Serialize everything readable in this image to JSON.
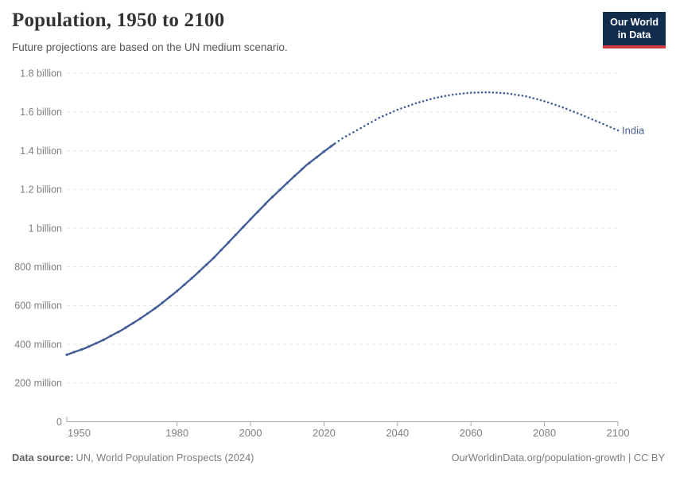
{
  "header": {
    "title": "Population, 1950 to 2100",
    "subtitle": "Future projections are based on the UN medium scenario.",
    "logo": {
      "line1": "Our World",
      "line2": "in Data",
      "bg_color": "#102d4e",
      "accent_color": "#cf3b41"
    }
  },
  "footer": {
    "source_label": "Data source:",
    "source_text": "UN, World Population Prospects (2024)",
    "credit": "OurWorldinData.org/population-growth | CC BY"
  },
  "chart_data": {
    "type": "line",
    "title": "Population, 1950 to 2100",
    "subtitle": "Future projections are based on the UN medium scenario.",
    "entity": "India",
    "unit": "people",
    "historical_end_year": 2023,
    "projection_style": "dotted",
    "xlim": [
      1950,
      2100
    ],
    "ylim_millions": [
      0,
      1800
    ],
    "grid": true,
    "legend_position": "end-of-line",
    "x_ticks": [
      1950,
      1980,
      2000,
      2020,
      2040,
      2060,
      2080,
      2100
    ],
    "y_ticks": [
      {
        "value": 1800,
        "label": "1.8 billion"
      },
      {
        "value": 1600,
        "label": "1.6 billion"
      },
      {
        "value": 1400,
        "label": "1.4 billion"
      },
      {
        "value": 1200,
        "label": "1.2 billion"
      },
      {
        "value": 1000,
        "label": "1 billion"
      },
      {
        "value": 800,
        "label": "800 million"
      },
      {
        "value": 600,
        "label": "600 million"
      },
      {
        "value": 400,
        "label": "400 million"
      },
      {
        "value": 200,
        "label": "200 million"
      },
      {
        "value": 0,
        "label": "0"
      }
    ],
    "series": [
      {
        "name": "India",
        "color": "#435e96",
        "years": [
          1950,
          1955,
          1960,
          1965,
          1970,
          1975,
          1980,
          1985,
          1990,
          1995,
          2000,
          2005,
          2010,
          2015,
          2020,
          2023,
          2025,
          2030,
          2035,
          2040,
          2045,
          2050,
          2055,
          2060,
          2065,
          2070,
          2075,
          2080,
          2085,
          2090,
          2095,
          2100
        ],
        "values_millions": [
          346,
          380,
          423,
          474,
          533,
          599,
          675,
          758,
          847,
          946,
          1046,
          1144,
          1234,
          1322,
          1396,
          1438,
          1464,
          1517,
          1570,
          1612,
          1645,
          1672,
          1690,
          1700,
          1702,
          1696,
          1681,
          1656,
          1624,
          1586,
          1546,
          1505
        ]
      }
    ],
    "style": {
      "grid_color": "#e2e2e2",
      "axis_color": "#a5a5a5",
      "tick_label_color": "#7f7f7f"
    }
  }
}
